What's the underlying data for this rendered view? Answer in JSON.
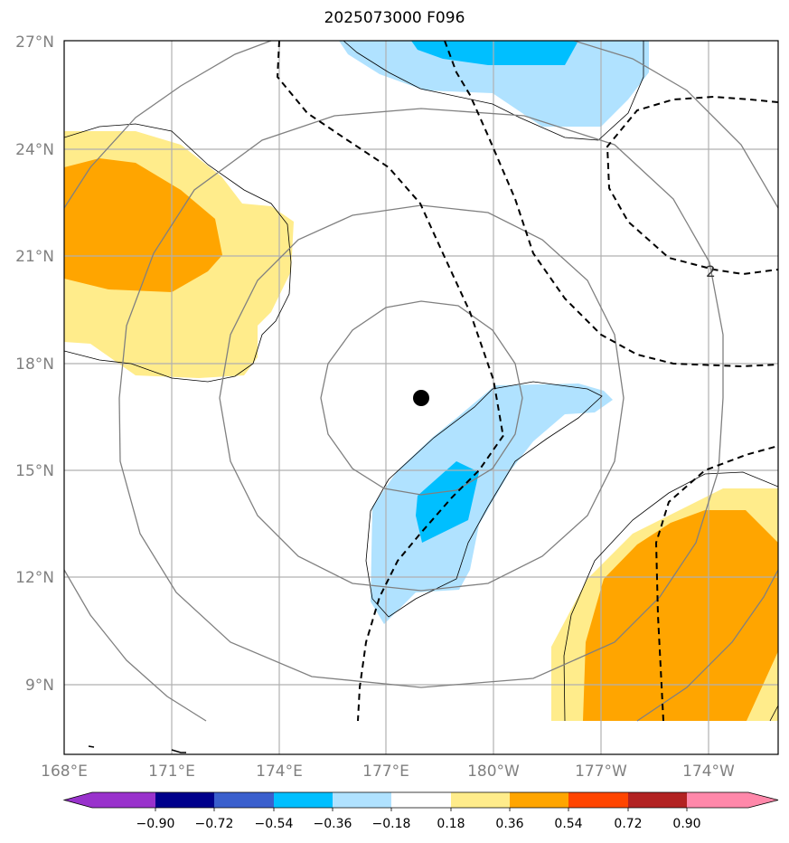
{
  "title": "2025073000 F096",
  "lat_labels": [
    "27°N",
    "24°N",
    "21°N",
    "18°N",
    "15°N",
    "12°N",
    "9°N"
  ],
  "lon_labels": [
    "168°E",
    "171°E",
    "174°E",
    "177°E",
    "180°W",
    "177°W",
    "174°W"
  ],
  "contour_label": "2",
  "colorbar": {
    "ticks": [
      "−0.90",
      "−0.72",
      "−0.54",
      "−0.36",
      "−0.18",
      "0.18",
      "0.36",
      "0.54",
      "0.72",
      "0.90"
    ],
    "colors": [
      "#9932cc",
      "#00008b",
      "#3a5fcd",
      "#00bfff",
      "#b0e2ff",
      "#ffffff",
      "#ffec8b",
      "#ffa500",
      "#ff4500",
      "#b22222",
      "#ff88aa"
    ]
  },
  "map_colors": {
    "neg_light": "#b0e2ff",
    "neg_mid": "#00bfff",
    "pos_light": "#ffec8b",
    "pos_mid": "#ffa500"
  },
  "storm_center": {
    "lat": 17.0,
    "lon": 178.0
  }
}
